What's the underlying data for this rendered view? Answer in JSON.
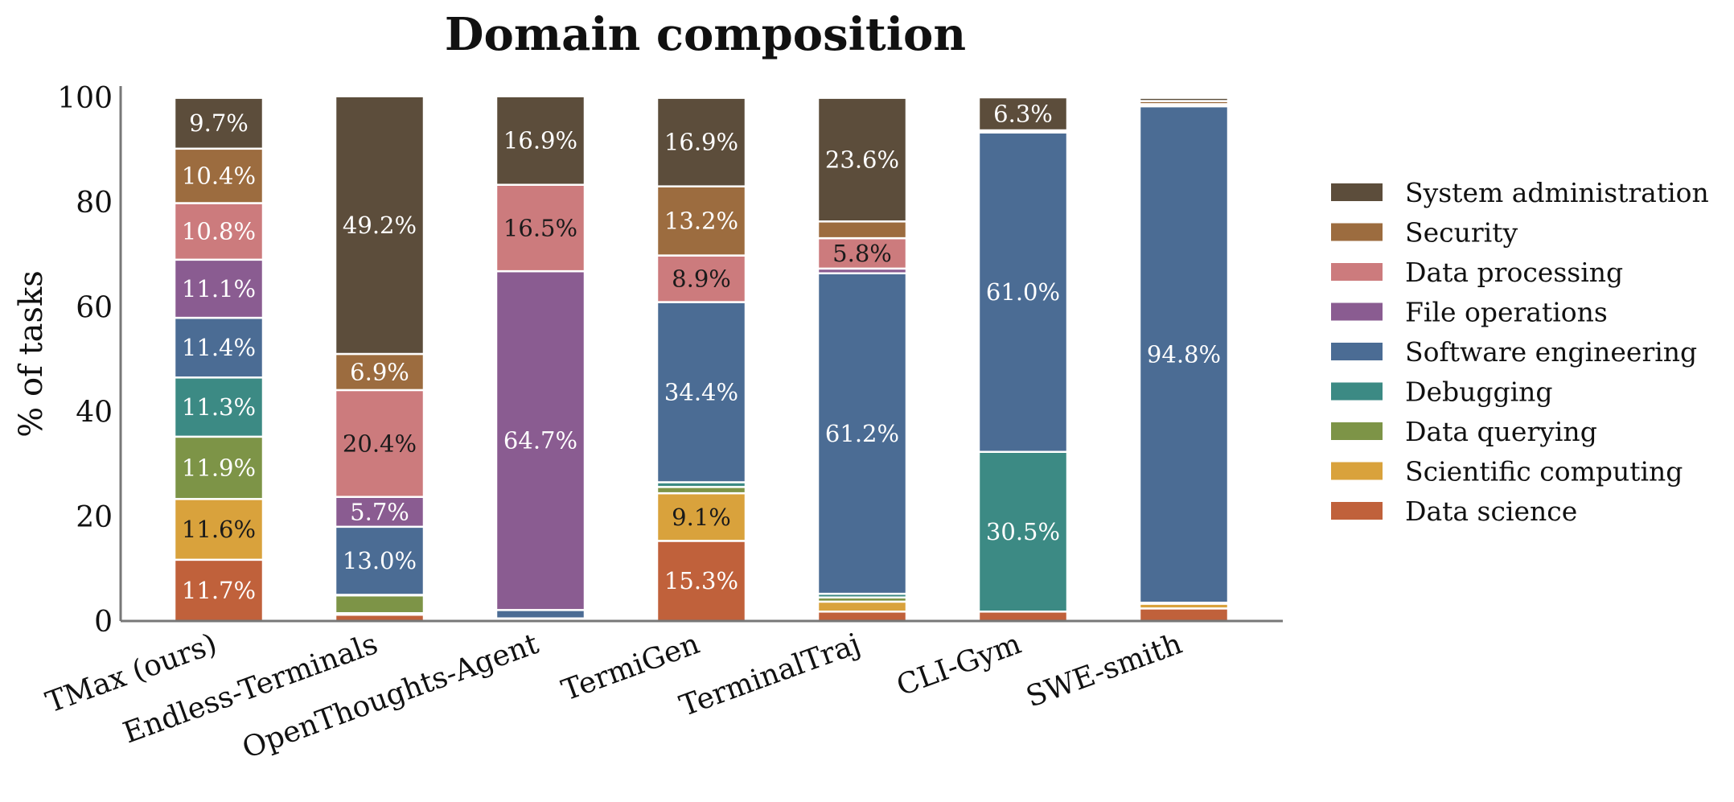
{
  "chart_data": {
    "type": "bar",
    "stacked": true,
    "title": "Domain composition",
    "xlabel": "",
    "ylabel": "% of tasks",
    "ylim": [
      0,
      100
    ],
    "yticks": [
      "0",
      "20",
      "40",
      "60",
      "80",
      "100"
    ],
    "legend_position": "right",
    "grid": false,
    "categories": [
      "TMax (ours)",
      "Endless-Terminals",
      "OpenThoughts-Agent",
      "TermiGen",
      "TerminalTraj",
      "CLI-Gym",
      "SWE-smith"
    ],
    "series": [
      {
        "name": "Data science",
        "color": "#c0613b",
        "values": [
          11.7,
          1.2,
          0.3,
          15.3,
          1.8,
          1.8,
          2.4
        ],
        "labels": [
          "11.7%",
          "",
          "",
          "15.3%",
          "",
          "",
          ""
        ]
      },
      {
        "name": "Scientific computing",
        "color": "#d9a23c",
        "values": [
          11.6,
          0.3,
          0.0,
          9.1,
          1.9,
          0.0,
          0.9
        ],
        "labels": [
          "11.6%",
          "",
          "",
          "9.1%",
          "",
          "",
          ""
        ]
      },
      {
        "name": "Data querying",
        "color": "#7d9447",
        "values": [
          11.9,
          3.4,
          0.0,
          1.2,
          0.8,
          0.0,
          0.1
        ],
        "labels": [
          "11.9%",
          "",
          "",
          "",
          "",
          "",
          ""
        ]
      },
      {
        "name": "Debugging",
        "color": "#3c8a84",
        "values": [
          11.3,
          0.1,
          0.2,
          0.9,
          0.7,
          30.5,
          0.1
        ],
        "labels": [
          "11.3%",
          "",
          "",
          "",
          "",
          "30.5%",
          ""
        ]
      },
      {
        "name": "Software engineering",
        "color": "#4b6c94",
        "values": [
          11.4,
          13.0,
          1.6,
          34.4,
          61.2,
          61.0,
          94.8
        ],
        "labels": [
          "11.4%",
          "13.0%",
          "",
          "34.4%",
          "61.2%",
          "61.0%",
          "94.8%"
        ]
      },
      {
        "name": "File operations",
        "color": "#8a5c91",
        "values": [
          11.1,
          5.7,
          64.7,
          0.0,
          0.9,
          0.0,
          0.0
        ],
        "labels": [
          "11.1%",
          "5.7%",
          "64.7%",
          "",
          "",
          "",
          ""
        ]
      },
      {
        "name": "Data processing",
        "color": "#cc7b7d",
        "values": [
          10.8,
          20.4,
          16.5,
          8.9,
          5.8,
          0.2,
          0.4
        ],
        "labels": [
          "10.8%",
          "20.4%",
          "16.5%",
          "8.9%",
          "5.8%",
          "",
          ""
        ]
      },
      {
        "name": "Security",
        "color": "#9c6c3f",
        "values": [
          10.4,
          6.9,
          0.0,
          13.2,
          3.2,
          0.2,
          0.6
        ],
        "labels": [
          "10.4%",
          "6.9%",
          "",
          "13.2%",
          "",
          "",
          ""
        ]
      },
      {
        "name": "System administration",
        "color": "#5c4d3b",
        "values": [
          9.7,
          49.2,
          16.9,
          16.9,
          23.6,
          6.3,
          0.6
        ],
        "labels": [
          "9.7%",
          "49.2%",
          "16.9%",
          "16.9%",
          "23.6%",
          "6.3%",
          ""
        ]
      }
    ],
    "legend_order": [
      "System administration",
      "Security",
      "Data processing",
      "File operations",
      "Software engineering",
      "Debugging",
      "Data querying",
      "Scientific computing",
      "Data science"
    ],
    "dark_text_labels": [
      "11.6%",
      "20.4%",
      "16.5%",
      "9.1%",
      "8.9%",
      "5.8%"
    ]
  }
}
